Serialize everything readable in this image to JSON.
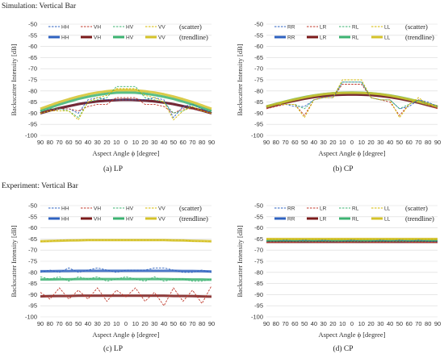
{
  "sections": [
    {
      "title": "Simulation:  Vertical Bar"
    },
    {
      "title": "Experiment: Vertical Bar"
    }
  ],
  "legend_tags": {
    "scatter": "(scatter)",
    "trendline": "(trendline)"
  },
  "chart_data": [
    {
      "type": "line",
      "caption": "(a) LP",
      "xlabel": "Aspect Angle ϕ [degree]",
      "ylabel": "Backscatter Intensity  [dB]",
      "x_ticks": [
        "90",
        "80",
        "70",
        "60",
        "50",
        "40",
        "30",
        "20",
        "10",
        "0",
        "10",
        "20",
        "30",
        "40",
        "50",
        "60",
        "70",
        "80",
        "90"
      ],
      "ylim": [
        -100,
        -50
      ],
      "y_ticks": [
        -50,
        -55,
        -60,
        -65,
        -70,
        -75,
        -80,
        -85,
        -90,
        -95,
        -100
      ],
      "series_names": [
        "HH",
        "VH",
        "HV",
        "VV"
      ],
      "colors": [
        "#2e62c0",
        "#c0392b",
        "#3cb371",
        "#d4b800"
      ],
      "scatter": [
        [
          -90,
          -89,
          -88,
          -88,
          -90,
          -84,
          -83,
          -84,
          -84,
          -84,
          -84,
          -84,
          -83,
          -84,
          -92,
          -87,
          -86,
          -88,
          -90
        ],
        [
          -90,
          -89,
          -88,
          -88,
          -89,
          -87,
          -86,
          -86,
          -83,
          -83,
          -83,
          -86,
          -86,
          -87,
          -90,
          -88,
          -88,
          -89,
          -90
        ],
        [
          -89,
          -88,
          -88,
          -89,
          -92,
          -85,
          -84,
          -83,
          -78,
          -78,
          -78,
          -83,
          -84,
          -85,
          -90,
          -89,
          -86,
          -88,
          -89
        ],
        [
          -90,
          -89,
          -89,
          -89,
          -93,
          -85,
          -83,
          -82,
          -79,
          -79,
          -79,
          -82,
          -83,
          -85,
          -93,
          -89,
          -87,
          -89,
          -90
        ]
      ],
      "trend": [
        [
          -90,
          -88.8,
          -87.7,
          -86.8,
          -85.9,
          -85.2,
          -84.7,
          -84.3,
          -84.1,
          -84,
          -84.1,
          -84.3,
          -84.7,
          -85.2,
          -85.9,
          -86.8,
          -87.7,
          -88.8,
          -90
        ],
        [
          -90,
          -88.8,
          -87.7,
          -86.8,
          -85.9,
          -85.2,
          -84.7,
          -84.3,
          -84.1,
          -84,
          -84.1,
          -84.3,
          -84.7,
          -85.2,
          -85.9,
          -86.8,
          -87.7,
          -88.8,
          -90
        ],
        [
          -89,
          -87.5,
          -86.1,
          -84.8,
          -83.6,
          -82.6,
          -81.8,
          -81.2,
          -80.8,
          -80.7,
          -80.8,
          -81.2,
          -81.8,
          -82.6,
          -83.6,
          -84.8,
          -86.1,
          -87.5,
          -89
        ],
        [
          -88,
          -86.5,
          -85.0,
          -83.7,
          -82.5,
          -81.5,
          -80.7,
          -80.1,
          -79.7,
          -79.6,
          -79.7,
          -80.1,
          -80.7,
          -81.5,
          -82.5,
          -83.7,
          -85.0,
          -86.5,
          -88
        ]
      ]
    },
    {
      "type": "line",
      "caption": "(b)  CP",
      "xlabel": "Aspect Angle ϕ [degree]",
      "ylabel": "Backscatter Intensity [dB]",
      "x_ticks": [
        "90",
        "80",
        "70",
        "60",
        "50",
        "40",
        "30",
        "20",
        "10",
        "0",
        "10",
        "20",
        "30",
        "40",
        "50",
        "60",
        "70",
        "80",
        "90"
      ],
      "ylim": [
        -100,
        -50
      ],
      "y_ticks": [
        -50,
        -55,
        -60,
        -65,
        -70,
        -75,
        -80,
        -85,
        -90,
        -95,
        -100
      ],
      "series_names": [
        "RR",
        "LR",
        "RL",
        "LL"
      ],
      "colors": [
        "#2e62c0",
        "#c0392b",
        "#3cb371",
        "#d4b800"
      ],
      "scatter": [
        [
          -87,
          -86,
          -86,
          -87,
          -87,
          -84,
          -83,
          -83,
          -76,
          -76,
          -76,
          -83,
          -84,
          -84,
          -88,
          -87,
          -84,
          -85,
          -87
        ],
        [
          -88,
          -87,
          -86,
          -86,
          -91,
          -84,
          -83,
          -83,
          -77,
          -77,
          -77,
          -83,
          -84,
          -85,
          -91,
          -86,
          -84,
          -86,
          -88
        ],
        [
          -87,
          -86,
          -86,
          -86,
          -88,
          -84,
          -83,
          -83,
          -76,
          -76,
          -76,
          -83,
          -84,
          -84,
          -88,
          -86,
          -84,
          -86,
          -87
        ],
        [
          -87,
          -86,
          -86,
          -86,
          -92,
          -84,
          -83,
          -83,
          -75,
          -75,
          -75,
          -83,
          -84,
          -84,
          -92,
          -86,
          -83,
          -86,
          -87
        ]
      ],
      "trend": [
        [
          -87,
          -86.0,
          -85.0,
          -84.1,
          -83.3,
          -82.6,
          -82.1,
          -81.8,
          -81.6,
          -81.5,
          -81.6,
          -81.8,
          -82.1,
          -82.6,
          -83.3,
          -84.1,
          -85.0,
          -86.0,
          -87
        ],
        [
          -87.5,
          -86.4,
          -85.3,
          -84.4,
          -83.5,
          -82.8,
          -82.3,
          -81.9,
          -81.7,
          -81.6,
          -81.7,
          -81.9,
          -82.3,
          -82.8,
          -83.5,
          -84.4,
          -85.3,
          -86.4,
          -87.5
        ],
        [
          -87,
          -85.8,
          -84.7,
          -83.7,
          -82.8,
          -82.0,
          -81.4,
          -81.0,
          -80.8,
          -80.7,
          -80.8,
          -81.0,
          -81.4,
          -82.0,
          -82.8,
          -83.7,
          -84.7,
          -85.8,
          -87
        ],
        [
          -87,
          -85.9,
          -84.8,
          -83.8,
          -82.9,
          -82.1,
          -81.5,
          -81.1,
          -80.9,
          -80.8,
          -80.9,
          -81.1,
          -81.5,
          -82.1,
          -82.9,
          -83.8,
          -84.8,
          -85.9,
          -87
        ]
      ]
    },
    {
      "type": "line",
      "caption": "(c) LP",
      "xlabel": "Aspect Angle ϕ [degree]",
      "ylabel": "Backscatter Intensity  [dB]",
      "x_ticks": [
        "90",
        "80",
        "70",
        "60",
        "50",
        "40",
        "30",
        "20",
        "10",
        "0",
        "10",
        "20",
        "30",
        "40",
        "50",
        "60",
        "70",
        "80",
        "90"
      ],
      "ylim": [
        -100,
        -50
      ],
      "y_ticks": [
        -50,
        -55,
        -60,
        -65,
        -70,
        -75,
        -80,
        -85,
        -90,
        -95,
        -100
      ],
      "series_names": [
        "HH",
        "VH",
        "HV",
        "VV"
      ],
      "colors": [
        "#2e62c0",
        "#c0392b",
        "#3cb371",
        "#d4b800"
      ],
      "scatter": [
        [
          -80,
          -79,
          -80,
          -78,
          -80,
          -79,
          -78,
          -79,
          -80,
          -79,
          -79,
          -79,
          -78,
          -78,
          -79,
          -80,
          -80,
          -79,
          -80
        ],
        [
          -89,
          -92,
          -87,
          -92,
          -88,
          -92,
          -87,
          -93,
          -88,
          -91,
          -87,
          -93,
          -89,
          -95,
          -87,
          -93,
          -88,
          -94,
          -86
        ],
        [
          -82,
          -83,
          -82,
          -84,
          -82,
          -83,
          -82,
          -84,
          -83,
          -82,
          -83,
          -84,
          -82,
          -84,
          -83,
          -83,
          -84,
          -84,
          -83
        ],
        [
          -66,
          -66,
          -65.5,
          -65.5,
          -65.5,
          -65.5,
          -65.5,
          -65.5,
          -65.5,
          -65.5,
          -65.5,
          -65.5,
          -65.5,
          -65.5,
          -65.5,
          -65.5,
          -66,
          -66,
          -66
        ]
      ],
      "trend": [
        [
          -79.5,
          -79.5,
          -79.4,
          -79.4,
          -79.3,
          -79.3,
          -79.3,
          -79.3,
          -79.3,
          -79.3,
          -79.3,
          -79.3,
          -79.3,
          -79.3,
          -79.3,
          -79.4,
          -79.4,
          -79.5,
          -79.6
        ],
        [
          -90.8,
          -90.7,
          -90.6,
          -90.6,
          -90.5,
          -90.5,
          -90.5,
          -90.5,
          -90.5,
          -90.5,
          -90.5,
          -90.5,
          -90.5,
          -90.5,
          -90.6,
          -90.6,
          -90.7,
          -90.8,
          -90.9
        ],
        [
          -83.2,
          -83.2,
          -83.1,
          -83.1,
          -83.0,
          -83.0,
          -83.0,
          -83.0,
          -83.0,
          -83.0,
          -83.0,
          -83.0,
          -83.0,
          -83.0,
          -83.1,
          -83.1,
          -83.2,
          -83.2,
          -83.3
        ],
        [
          -66.0,
          -65.9,
          -65.8,
          -65.7,
          -65.6,
          -65.5,
          -65.5,
          -65.5,
          -65.5,
          -65.5,
          -65.5,
          -65.5,
          -65.5,
          -65.5,
          -65.6,
          -65.7,
          -65.8,
          -65.9,
          -66.0
        ]
      ]
    },
    {
      "type": "line",
      "caption": "(d)  CP",
      "xlabel": "Aspect Angle ϕ [degree]",
      "ylabel": "Backscatter Intensity [dB]",
      "x_ticks": [
        "90",
        "80",
        "70",
        "60",
        "50",
        "40",
        "30",
        "20",
        "10",
        "0",
        "10",
        "20",
        "30",
        "40",
        "50",
        "60",
        "70",
        "80",
        "90"
      ],
      "ylim": [
        -100,
        -50
      ],
      "y_ticks": [
        -50,
        -55,
        -60,
        -65,
        -70,
        -75,
        -80,
        -85,
        -90,
        -95,
        -100
      ],
      "series_names": [
        "RR",
        "LR",
        "RL",
        "LL"
      ],
      "colors": [
        "#2e62c0",
        "#c0392b",
        "#3cb371",
        "#d4b800"
      ],
      "scatter": [
        [
          -66,
          -66,
          -65.5,
          -66,
          -65.5,
          -66,
          -65.5,
          -66,
          -66,
          -65.5,
          -66,
          -66,
          -65.5,
          -66,
          -65.5,
          -66,
          -65.5,
          -66,
          -66
        ],
        [
          -66.5,
          -66.5,
          -66.5,
          -66.5,
          -66,
          -66.5,
          -66.5,
          -66,
          -66.5,
          -66.5,
          -66,
          -66.5,
          -66.5,
          -66.5,
          -66,
          -66.5,
          -66.5,
          -66.5,
          -66.5
        ],
        [
          -66,
          -66,
          -66,
          -66,
          -66,
          -66,
          -66,
          -66,
          -66,
          -66,
          -66,
          -66,
          -66,
          -66,
          -66,
          -66,
          -66,
          -66,
          -66
        ],
        [
          -65,
          -65,
          -65,
          -65,
          -65,
          -65,
          -65,
          -65,
          -65,
          -65,
          -65,
          -65,
          -65,
          -65,
          -65,
          -65,
          -65,
          -65,
          -65
        ]
      ],
      "trend": [
        [
          -65.8,
          -65.8,
          -65.8,
          -65.8,
          -65.8,
          -65.8,
          -65.8,
          -65.8,
          -65.8,
          -65.8,
          -65.8,
          -65.8,
          -65.8,
          -65.8,
          -65.8,
          -65.8,
          -65.8,
          -65.8,
          -65.8
        ],
        [
          -66.3,
          -66.3,
          -66.3,
          -66.3,
          -66.3,
          -66.3,
          -66.3,
          -66.3,
          -66.3,
          -66.3,
          -66.3,
          -66.3,
          -66.3,
          -66.3,
          -66.3,
          -66.3,
          -66.3,
          -66.3,
          -66.3
        ],
        [
          -65.5,
          -65.5,
          -65.5,
          -65.5,
          -65.5,
          -65.5,
          -65.5,
          -65.5,
          -65.5,
          -65.5,
          -65.5,
          -65.5,
          -65.5,
          -65.5,
          -65.5,
          -65.5,
          -65.5,
          -65.5,
          -65.5
        ],
        [
          -65.0,
          -65.0,
          -65.0,
          -65.0,
          -65.0,
          -65.0,
          -65.0,
          -65.0,
          -65.0,
          -65.0,
          -65.0,
          -65.0,
          -65.0,
          -65.0,
          -65.0,
          -65.0,
          -65.0,
          -65.0,
          -65.0
        ]
      ]
    }
  ]
}
